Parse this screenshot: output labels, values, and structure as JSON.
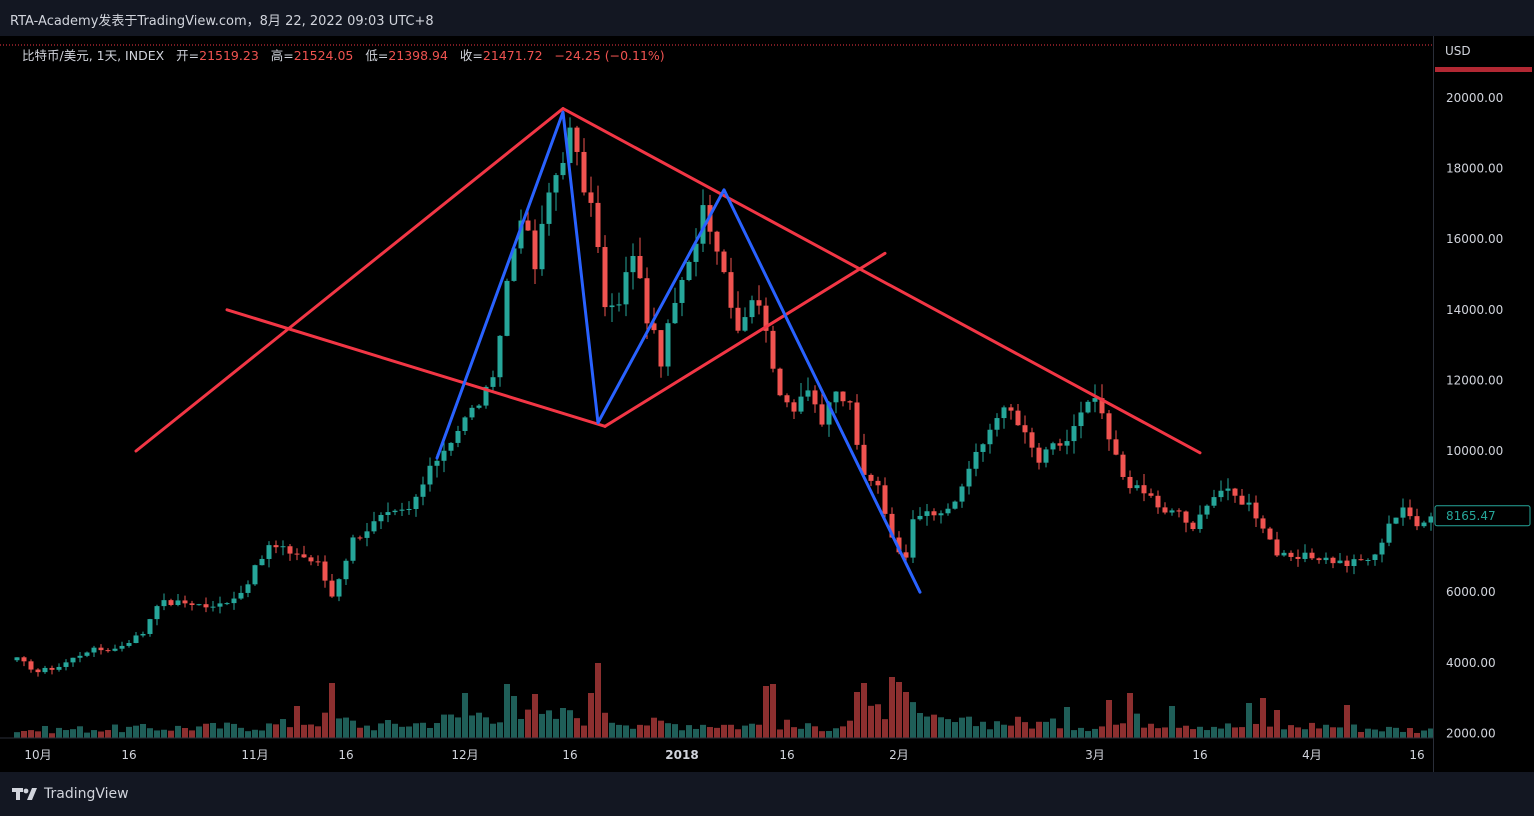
{
  "header": {
    "snapshot_title": "RTA-Academy发表于TradingView.com，8月 22, 2022 09:03 UTC+8"
  },
  "legend": {
    "symbol": "比特币/美元, 1天, INDEX",
    "open_label": "开=",
    "open": "21519.23",
    "high_label": "高=",
    "high": "21524.05",
    "low_label": "低=",
    "low": "21398.94",
    "close_label": "收=",
    "close": "21471.72",
    "change": "−24.25 (−0.11%)"
  },
  "price_axis": {
    "currency": "USD",
    "last_price_label": "8165.47"
  },
  "footer": {
    "brand": "TradingView"
  },
  "colors": {
    "up": "#26a69a",
    "down": "#ef5350",
    "volume_up": "#1f5e58",
    "volume_down": "#8c2f2f",
    "pattern_red": "#f23645",
    "pattern_blue": "#2962ff"
  },
  "chart_data": {
    "type": "candlestick",
    "title": "",
    "ylabel": "USD",
    "ylim": [
      2000,
      21000
    ],
    "y_ticks": [
      20000,
      18000,
      16000,
      14000,
      12000,
      10000,
      8000,
      6000,
      4000,
      2000
    ],
    "y_tick_labels": [
      "20000.00",
      "18000.00",
      "16000.00",
      "14000.00",
      "12000.00",
      "10000.00",
      "8000.00",
      "6000.00",
      "4000.00",
      "2000.00"
    ],
    "x_tick_labels": [
      {
        "label": "10月",
        "day": 3
      },
      {
        "label": "16",
        "day": 16
      },
      {
        "label": "11月",
        "day": 34
      },
      {
        "label": "16",
        "day": 47
      },
      {
        "label": "12月",
        "day": 64
      },
      {
        "label": "16",
        "day": 79
      },
      {
        "label": "2018",
        "day": 95,
        "bold": true
      },
      {
        "label": "16",
        "day": 110
      },
      {
        "label": "2月",
        "day": 126
      },
      {
        "label": "3月",
        "day": 154
      },
      {
        "label": "16",
        "day": 169
      },
      {
        "label": "4月",
        "day": 185
      },
      {
        "label": "16",
        "day": 200
      }
    ],
    "first_day": "2017-09-30",
    "close_anchors": [
      [
        0,
        4100
      ],
      [
        3,
        3750
      ],
      [
        6,
        3900
      ],
      [
        10,
        4350
      ],
      [
        14,
        4400
      ],
      [
        18,
        4850
      ],
      [
        20,
        5700
      ],
      [
        25,
        5700
      ],
      [
        28,
        5550
      ],
      [
        32,
        6000
      ],
      [
        36,
        7300
      ],
      [
        40,
        7100
      ],
      [
        43,
        6800
      ],
      [
        45,
        5900
      ],
      [
        48,
        7500
      ],
      [
        52,
        8100
      ],
      [
        56,
        8300
      ],
      [
        60,
        9800
      ],
      [
        64,
        10900
      ],
      [
        68,
        11900
      ],
      [
        70,
        14800
      ],
      [
        72,
        16800
      ],
      [
        74,
        15200
      ],
      [
        76,
        17300
      ],
      [
        79,
        19000
      ],
      [
        81,
        17500
      ],
      [
        83,
        16000
      ],
      [
        84,
        14000
      ],
      [
        86,
        14100
      ],
      [
        88,
        15700
      ],
      [
        90,
        13800
      ],
      [
        92,
        12600
      ],
      [
        94,
        14200
      ],
      [
        96,
        15200
      ],
      [
        98,
        17000
      ],
      [
        99,
        16500
      ],
      [
        101,
        15100
      ],
      [
        103,
        13500
      ],
      [
        105,
        14400
      ],
      [
        107,
        13600
      ],
      [
        109,
        11400
      ],
      [
        111,
        11300
      ],
      [
        113,
        11900
      ],
      [
        115,
        10800
      ],
      [
        117,
        11600
      ],
      [
        119,
        11300
      ],
      [
        121,
        9200
      ],
      [
        123,
        9000
      ],
      [
        125,
        7600
      ],
      [
        127,
        6900
      ],
      [
        128,
        8200
      ],
      [
        130,
        8400
      ],
      [
        132,
        8100
      ],
      [
        134,
        8600
      ],
      [
        136,
        9500
      ],
      [
        138,
        10200
      ],
      [
        140,
        11100
      ],
      [
        142,
        11100
      ],
      [
        144,
        10400
      ],
      [
        146,
        9700
      ],
      [
        148,
        10100
      ],
      [
        150,
        10300
      ],
      [
        152,
        11000
      ],
      [
        154,
        11500
      ],
      [
        156,
        10300
      ],
      [
        158,
        9300
      ],
      [
        160,
        8900
      ],
      [
        162,
        8700
      ],
      [
        164,
        8200
      ],
      [
        166,
        8300
      ],
      [
        168,
        7700
      ],
      [
        170,
        8600
      ],
      [
        172,
        8900
      ],
      [
        174,
        8700
      ],
      [
        176,
        8500
      ],
      [
        178,
        7900
      ],
      [
        180,
        7100
      ],
      [
        182,
        6900
      ],
      [
        184,
        7000
      ],
      [
        186,
        7000
      ],
      [
        188,
        6900
      ],
      [
        190,
        6800
      ],
      [
        192,
        6900
      ],
      [
        194,
        7000
      ],
      [
        196,
        8000
      ],
      [
        198,
        8300
      ],
      [
        200,
        8000
      ],
      [
        202,
        8165
      ]
    ],
    "volume_ylim": [
      0,
      10
    ],
    "volume_anchors": [
      [
        0,
        0.8
      ],
      [
        20,
        1.0
      ],
      [
        35,
        1.2
      ],
      [
        40,
        1.5
      ],
      [
        45,
        2.0
      ],
      [
        50,
        1.2
      ],
      [
        58,
        1.5
      ],
      [
        62,
        2.0
      ],
      [
        66,
        2.4
      ],
      [
        70,
        2.5
      ],
      [
        74,
        2.0
      ],
      [
        80,
        2.2
      ],
      [
        86,
        1.8
      ],
      [
        92,
        1.4
      ],
      [
        100,
        1.4
      ],
      [
        104,
        1.2
      ],
      [
        108,
        1.6
      ],
      [
        112,
        1.0
      ],
      [
        118,
        1.3
      ],
      [
        126,
        3.4
      ],
      [
        130,
        1.7
      ],
      [
        136,
        1.5
      ],
      [
        142,
        1.6
      ],
      [
        150,
        1.3
      ],
      [
        156,
        1.2
      ],
      [
        160,
        1.8
      ],
      [
        166,
        1.6
      ],
      [
        172,
        1.2
      ],
      [
        180,
        1.0
      ],
      [
        186,
        1.3
      ],
      [
        192,
        1.0
      ],
      [
        202,
        0.8
      ]
    ],
    "volume_spikes": [
      [
        45,
        5.5
      ],
      [
        40,
        3.2
      ],
      [
        64,
        4.5
      ],
      [
        70,
        5.4
      ],
      [
        71,
        4.2
      ],
      [
        74,
        4.4
      ],
      [
        78,
        3.0
      ],
      [
        83,
        7.5
      ],
      [
        82,
        4.5
      ],
      [
        107,
        5.2
      ],
      [
        108,
        5.4
      ],
      [
        120,
        4.6
      ],
      [
        121,
        5.5
      ],
      [
        125,
        6.1
      ],
      [
        126,
        5.6
      ],
      [
        127,
        4.6
      ],
      [
        129,
        2.5
      ],
      [
        150,
        3.1
      ],
      [
        156,
        3.8
      ],
      [
        159,
        4.5
      ],
      [
        165,
        3.2
      ],
      [
        176,
        3.5
      ],
      [
        178,
        4.0
      ],
      [
        180,
        2.8
      ],
      [
        190,
        3.3
      ]
    ],
    "pattern_lines": [
      {
        "name": "left-rising-red",
        "color": "red",
        "points": [
          [
            17,
            10000
          ],
          [
            78,
            19700
          ]
        ]
      },
      {
        "name": "upper-descending-red",
        "color": "red",
        "points": [
          [
            78,
            19700
          ],
          [
            169,
            9950
          ]
        ]
      },
      {
        "name": "lower-left-red",
        "color": "red",
        "points": [
          [
            30,
            14000
          ],
          [
            84,
            10700
          ]
        ]
      },
      {
        "name": "lower-right-red",
        "color": "red",
        "points": [
          [
            84,
            10700
          ],
          [
            124,
            15600
          ]
        ]
      },
      {
        "name": "zigzag-blue",
        "color": "blue",
        "points": [
          [
            60,
            9800
          ],
          [
            78,
            19600
          ],
          [
            83,
            10800
          ],
          [
            101,
            17400
          ],
          [
            129,
            6000
          ]
        ]
      }
    ]
  }
}
